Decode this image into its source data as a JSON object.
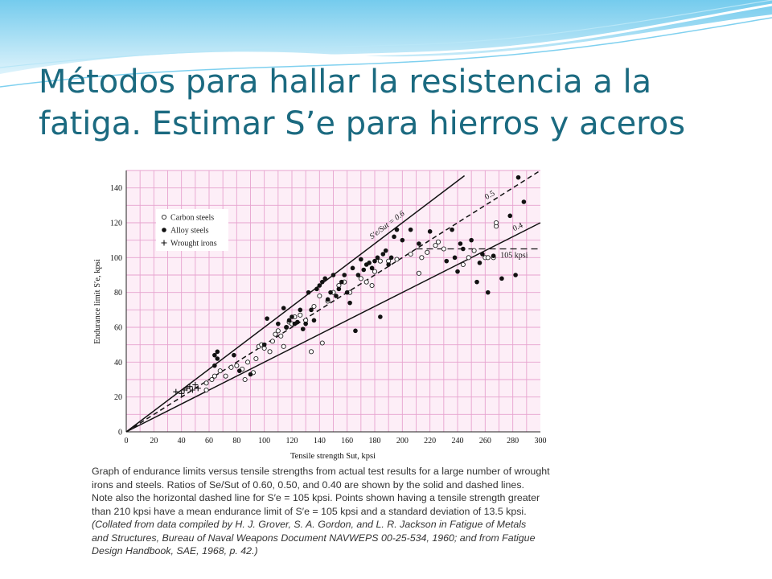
{
  "slide": {
    "title": "Métodos para hallar la resistencia a la fatiga. Estimar S’e para hierros y aceros"
  },
  "caption": {
    "line1": "Graph of endurance limits versus tensile strengths from actual test results for a large number of wrought",
    "line2": "irons and steels. Ratios of Se/Sut of 0.60, 0.50, and 0.40 are shown by the solid and dashed lines.",
    "line3": "Note also the horizontal dashed line for S′e = 105 kpsi. Points shown having a tensile strength greater",
    "line4": "than 210 kpsi have a mean endurance limit of S′e = 105 kpsi and a standard deviation of 13.5 kpsi.",
    "line5": "(Collated from data compiled by H. J. Grover, S. A. Gordon, and L. R. Jackson in Fatigue of Metals",
    "line6": "and Structures, Bureau of Naval Weapons Document NAVWEPS 00-25-534, 1960; and from Fatigue",
    "line7": "Design Handbook, SAE, 1968, p. 42.)"
  },
  "colors": {
    "title": "#1b6a80",
    "grid": "#e7a3cf",
    "plot_bg": "#fdeef7",
    "wave": "#8fd3ef"
  },
  "chart_data": {
    "type": "scatter",
    "xlabel": "Tensile strength Sut, kpsi",
    "ylabel": "Endurance limit S′e, kpsi",
    "xlim": [
      0,
      300
    ],
    "ylim": [
      0,
      150
    ],
    "xticks": [
      0,
      20,
      40,
      60,
      80,
      100,
      120,
      140,
      160,
      180,
      200,
      220,
      240,
      260,
      280,
      300
    ],
    "yticks": [
      0,
      20,
      40,
      60,
      80,
      100,
      120,
      140
    ],
    "grid": true,
    "legend_position": "top-left",
    "legend": [
      "Carbon steels",
      "Alloy steels",
      "Wrought irons"
    ],
    "series": [
      {
        "name": "Carbon steels",
        "marker": "open-circle",
        "points": [
          [
            58,
            24
          ],
          [
            58,
            28
          ],
          [
            62,
            30
          ],
          [
            64,
            32
          ],
          [
            68,
            35
          ],
          [
            72,
            32
          ],
          [
            76,
            37
          ],
          [
            80,
            38
          ],
          [
            84,
            36
          ],
          [
            86,
            30
          ],
          [
            88,
            40
          ],
          [
            92,
            34
          ],
          [
            94,
            42
          ],
          [
            96,
            49
          ],
          [
            98,
            50
          ],
          [
            100,
            48
          ],
          [
            104,
            46
          ],
          [
            106,
            52
          ],
          [
            108,
            56
          ],
          [
            110,
            58
          ],
          [
            112,
            55
          ],
          [
            114,
            49
          ],
          [
            116,
            60
          ],
          [
            118,
            63
          ],
          [
            120,
            62
          ],
          [
            122,
            66
          ],
          [
            126,
            67
          ],
          [
            130,
            64
          ],
          [
            134,
            46
          ],
          [
            136,
            72
          ],
          [
            140,
            78
          ],
          [
            142,
            51
          ],
          [
            146,
            75
          ],
          [
            150,
            80
          ],
          [
            154,
            84
          ],
          [
            158,
            86
          ],
          [
            162,
            80
          ],
          [
            170,
            88
          ],
          [
            174,
            86
          ],
          [
            178,
            84
          ],
          [
            180,
            92
          ],
          [
            184,
            98
          ],
          [
            190,
            98
          ],
          [
            196,
            99
          ],
          [
            206,
            102
          ],
          [
            212,
            91
          ],
          [
            214,
            100
          ],
          [
            218,
            103
          ],
          [
            224,
            107
          ],
          [
            226,
            109
          ],
          [
            230,
            105
          ],
          [
            244,
            96
          ],
          [
            248,
            100
          ],
          [
            252,
            104
          ],
          [
            260,
            100
          ],
          [
            262,
            100
          ],
          [
            266,
            100
          ],
          [
            268,
            118
          ],
          [
            268,
            120
          ]
        ]
      },
      {
        "name": "Alloy steels",
        "marker": "filled-circle",
        "points": [
          [
            64,
            38
          ],
          [
            64,
            44
          ],
          [
            66,
            42
          ],
          [
            66,
            46
          ],
          [
            78,
            44
          ],
          [
            82,
            35
          ],
          [
            90,
            33
          ],
          [
            100,
            50
          ],
          [
            102,
            65
          ],
          [
            110,
            62
          ],
          [
            114,
            71
          ],
          [
            116,
            60
          ],
          [
            118,
            64
          ],
          [
            120,
            66
          ],
          [
            122,
            62
          ],
          [
            124,
            63
          ],
          [
            126,
            70
          ],
          [
            128,
            59
          ],
          [
            130,
            62
          ],
          [
            132,
            80
          ],
          [
            134,
            70
          ],
          [
            136,
            64
          ],
          [
            138,
            82
          ],
          [
            140,
            84
          ],
          [
            142,
            86
          ],
          [
            144,
            88
          ],
          [
            146,
            76
          ],
          [
            148,
            80
          ],
          [
            150,
            90
          ],
          [
            152,
            78
          ],
          [
            154,
            82
          ],
          [
            156,
            86
          ],
          [
            158,
            90
          ],
          [
            160,
            80
          ],
          [
            162,
            74
          ],
          [
            164,
            94
          ],
          [
            166,
            58
          ],
          [
            168,
            90
          ],
          [
            170,
            99
          ],
          [
            172,
            93
          ],
          [
            174,
            96
          ],
          [
            176,
            97
          ],
          [
            178,
            94
          ],
          [
            180,
            98
          ],
          [
            182,
            100
          ],
          [
            184,
            66
          ],
          [
            186,
            102
          ],
          [
            188,
            104
          ],
          [
            190,
            96
          ],
          [
            192,
            100
          ],
          [
            194,
            112
          ],
          [
            196,
            116
          ],
          [
            200,
            110
          ],
          [
            206,
            116
          ],
          [
            212,
            108
          ],
          [
            220,
            115
          ],
          [
            232,
            98
          ],
          [
            236,
            116
          ],
          [
            238,
            100
          ],
          [
            240,
            92
          ],
          [
            242,
            108
          ],
          [
            244,
            105
          ],
          [
            250,
            110
          ],
          [
            254,
            86
          ],
          [
            256,
            97
          ],
          [
            258,
            102
          ],
          [
            262,
            80
          ],
          [
            266,
            101
          ],
          [
            272,
            88
          ],
          [
            278,
            124
          ],
          [
            282,
            90
          ],
          [
            284,
            146
          ],
          [
            288,
            132
          ]
        ]
      },
      {
        "name": "Wrought irons",
        "marker": "plus",
        "points": [
          [
            36,
            23
          ],
          [
            40,
            22
          ],
          [
            42,
            24
          ],
          [
            44,
            25
          ],
          [
            46,
            26
          ],
          [
            48,
            24
          ],
          [
            50,
            27
          ],
          [
            52,
            25
          ]
        ]
      }
    ],
    "reference_lines": [
      {
        "ratio": 0.6,
        "style": "solid",
        "label": "S′e/Sut = 0.6",
        "x_end": 245
      },
      {
        "ratio": 0.5,
        "style": "dashed",
        "label": "0.5",
        "x_end": 300
      },
      {
        "ratio": 0.4,
        "style": "solid",
        "label": "0.4",
        "x_end": 300
      },
      {
        "value": 105,
        "style": "dashed-horizontal",
        "label": "105 kpsi",
        "x_start": 210,
        "x_end": 300
      }
    ]
  }
}
